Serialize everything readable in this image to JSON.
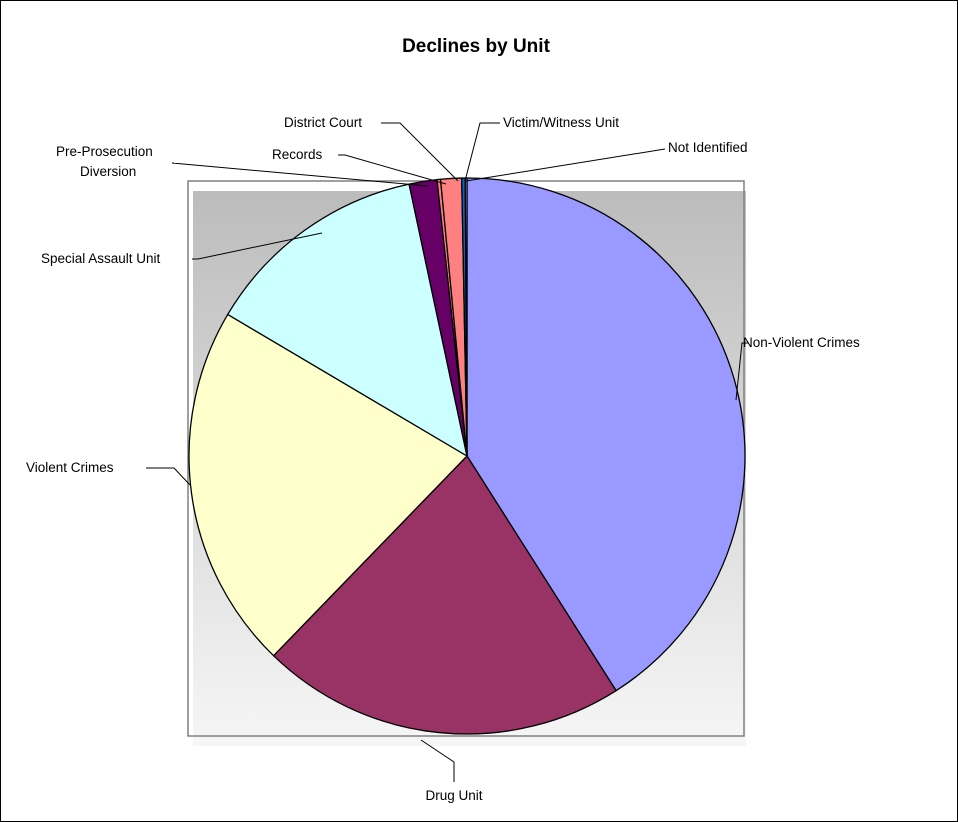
{
  "chart_data": {
    "type": "pie",
    "title": "Declines by Unit",
    "slices": [
      {
        "label": "Non-Violent Crimes",
        "value": 40.5,
        "color": "#9999FF"
      },
      {
        "label": "Drug Unit",
        "value": 21.0,
        "color": "#993366"
      },
      {
        "label": "Violent Crimes",
        "value": 21.0,
        "color": "#FFFFCC"
      },
      {
        "label": "Special Assault Unit",
        "value": 13.0,
        "color": "#CCFFFF"
      },
      {
        "label": "Pre-Prosecution Diversion",
        "label_lines": [
          "Pre-Prosecution",
          "Diversion"
        ],
        "value": 1.6,
        "color": "#660066"
      },
      {
        "label": "Records",
        "value": 0.2,
        "color": "#FF8080"
      },
      {
        "label": "District Court",
        "value": 1.2,
        "color": "#FF8080"
      },
      {
        "label": "Victim/Witness Unit",
        "value": 0.2,
        "color": "#0066CC"
      },
      {
        "label": "Not Identified",
        "value": 0.1,
        "color": "#CCCCFF"
      }
    ],
    "start_angle_deg": 90,
    "direction": "clockwise",
    "legend": "none",
    "grid": false
  }
}
